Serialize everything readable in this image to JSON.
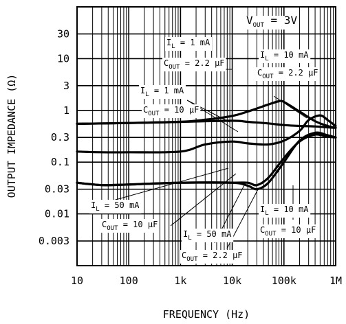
{
  "chart_data": {
    "type": "line",
    "title": "",
    "xlabel": "FREQUENCY (Hz)",
    "ylabel": "OUTPUT IMPEDANCE (Ω)",
    "x_scale": "log",
    "y_scale": "log",
    "xlim": [
      10,
      1000000
    ],
    "ylim": [
      0.001,
      100
    ],
    "grid": true,
    "x_ticks": [
      10,
      100,
      1000,
      10000,
      100000,
      1000000
    ],
    "x_tick_labels": [
      "10",
      "100",
      "1k",
      "10k",
      "100k",
      "1M"
    ],
    "y_ticks": [
      0.003,
      0.01,
      0.03,
      0.1,
      0.3,
      1,
      3,
      10,
      30
    ],
    "y_tick_labels": [
      "0.003",
      "0.01",
      "0.03",
      "0.1",
      "0.3",
      "1",
      "3",
      "10",
      "30"
    ],
    "condition": "V_OUT = 3V",
    "series": [
      {
        "x": [
          10,
          100,
          1000,
          3000,
          10000,
          20000,
          50000,
          80000,
          100000,
          200000,
          400000,
          700000,
          1000000
        ],
        "y": [
          0.55,
          0.57,
          0.6,
          0.66,
          0.78,
          0.95,
          1.3,
          1.5,
          1.45,
          0.95,
          0.62,
          0.5,
          0.46
        ]
      },
      {
        "x": [
          10,
          100,
          1000,
          10000,
          20000,
          50000,
          100000,
          200000,
          400000,
          700000,
          1000000
        ],
        "y": [
          0.55,
          0.57,
          0.6,
          0.63,
          0.6,
          0.56,
          0.52,
          0.5,
          0.49,
          0.47,
          0.46
        ]
      },
      {
        "x": [
          10,
          30,
          100,
          1000,
          3000,
          10000,
          20000,
          50000,
          100000,
          200000,
          300000,
          500000,
          700000,
          1000000
        ],
        "y": [
          0.16,
          0.155,
          0.155,
          0.16,
          0.22,
          0.25,
          0.23,
          0.22,
          0.26,
          0.4,
          0.65,
          0.8,
          0.65,
          0.5
        ]
      },
      {
        "x": [
          10,
          30,
          100,
          1000,
          10000,
          20000,
          30000,
          50000,
          100000,
          200000,
          400000,
          700000,
          1000000
        ],
        "y": [
          0.04,
          0.036,
          0.037,
          0.04,
          0.04,
          0.04,
          0.036,
          0.05,
          0.12,
          0.25,
          0.34,
          0.31,
          0.3
        ]
      },
      {
        "x": [
          10,
          30,
          100,
          1000,
          10000,
          20000,
          30000,
          50000,
          100000,
          200000,
          400000,
          700000,
          1000000
        ],
        "y": [
          0.04,
          0.036,
          0.037,
          0.04,
          0.04,
          0.035,
          0.03,
          0.04,
          0.1,
          0.26,
          0.37,
          0.33,
          0.3
        ]
      }
    ],
    "annotations": [
      {
        "a": "I",
        "b": "L",
        "c": " = 1 mA"
      },
      {
        "a": "C",
        "b": "OUT",
        "c": " = 2.2 μF"
      },
      {
        "a": "I",
        "b": "L",
        "c": " = 10 mA"
      },
      {
        "a": "C",
        "b": "OUT",
        "c": " = 2.2 μF"
      },
      {
        "a": "I",
        "b": "L",
        "c": " = 1 mA"
      },
      {
        "a": "C",
        "b": "OUT",
        "c": " = 10 μF"
      },
      {
        "a": "I",
        "b": "L",
        "c": " = 50 mA"
      },
      {
        "a": "C",
        "b": "OUT",
        "c": " = 10 μF"
      },
      {
        "a": "I",
        "b": "L",
        "c": " = 50 mA"
      },
      {
        "a": "C",
        "b": "OUT",
        "c": " = 2.2 μF"
      },
      {
        "a": "I",
        "b": "L",
        "c": " = 10 mA"
      },
      {
        "a": "C",
        "b": "OUT",
        "c": " = 10 μF"
      }
    ],
    "condition_label": {
      "a": "V",
      "b": "OUT",
      "c": " = 3V"
    }
  }
}
